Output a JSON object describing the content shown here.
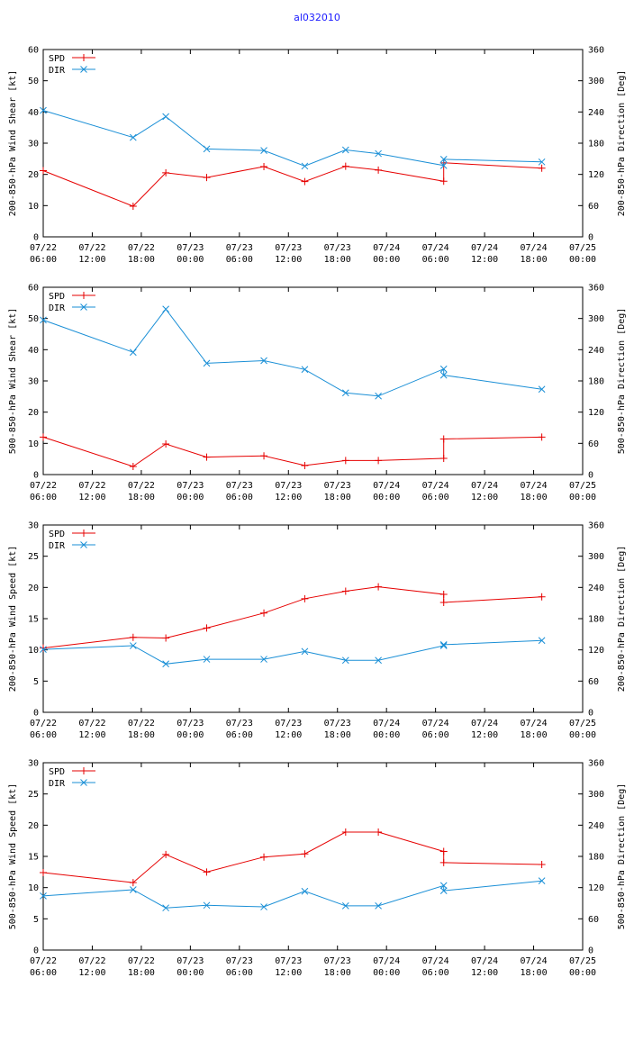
{
  "title": "al032010",
  "colors": {
    "title": "#1a1aff",
    "spd": "#e60000",
    "dir": "#1a8fd6",
    "axis": "#000000",
    "bg": "#ffffff"
  },
  "legend": {
    "spd": "SPD",
    "dir": "DIR"
  },
  "chart_data": [
    {
      "type": "line",
      "ylabel": "200-850-hPa Wind Shear [kt]",
      "y2label": "200-850-hPa Direction [Deg]",
      "ylim": [
        0,
        60
      ],
      "yticks": [
        0,
        10,
        20,
        30,
        40,
        50,
        60
      ],
      "y2lim": [
        0,
        360
      ],
      "y2ticks": [
        0,
        60,
        120,
        180,
        240,
        300,
        360
      ],
      "xlim": [
        0,
        66
      ],
      "xticks": [
        0,
        6,
        12,
        18,
        24,
        30,
        36,
        42,
        48,
        54,
        60,
        66
      ],
      "xticklabels": [
        [
          "07/22",
          "06:00"
        ],
        [
          "07/22",
          "12:00"
        ],
        [
          "07/22",
          "18:00"
        ],
        [
          "07/23",
          "00:00"
        ],
        [
          "07/23",
          "06:00"
        ],
        [
          "07/23",
          "12:00"
        ],
        [
          "07/23",
          "18:00"
        ],
        [
          "07/24",
          "00:00"
        ],
        [
          "07/24",
          "06:00"
        ],
        [
          "07/24",
          "12:00"
        ],
        [
          "07/24",
          "18:00"
        ],
        [
          "07/25",
          "00:00"
        ]
      ],
      "x_hours": [
        0,
        11,
        15,
        20,
        27,
        32,
        37,
        41,
        49,
        49,
        61
      ],
      "series": [
        {
          "name": "SPD",
          "axis": "y",
          "values": [
            21.2,
            9.8,
            20.5,
            19.0,
            22.5,
            17.7,
            22.6,
            21.4,
            17.8,
            23.7,
            22.0
          ]
        },
        {
          "name": "DIR",
          "axis": "y2",
          "values": [
            243,
            191,
            231,
            169,
            166,
            136,
            167,
            160,
            137,
            149,
            144
          ]
        }
      ]
    },
    {
      "type": "line",
      "ylabel": "500-850-hPa Wind Shear [kt]",
      "y2label": "500-850-hPa Direction [Deg]",
      "ylim": [
        0,
        60
      ],
      "yticks": [
        0,
        10,
        20,
        30,
        40,
        50,
        60
      ],
      "y2lim": [
        0,
        360
      ],
      "y2ticks": [
        0,
        60,
        120,
        180,
        240,
        300,
        360
      ],
      "xlim": [
        0,
        66
      ],
      "xticks": [
        0,
        6,
        12,
        18,
        24,
        30,
        36,
        42,
        48,
        54,
        60,
        66
      ],
      "xticklabels": [
        [
          "07/22",
          "06:00"
        ],
        [
          "07/22",
          "12:00"
        ],
        [
          "07/22",
          "18:00"
        ],
        [
          "07/23",
          "00:00"
        ],
        [
          "07/23",
          "06:00"
        ],
        [
          "07/23",
          "12:00"
        ],
        [
          "07/23",
          "18:00"
        ],
        [
          "07/24",
          "00:00"
        ],
        [
          "07/24",
          "06:00"
        ],
        [
          "07/24",
          "12:00"
        ],
        [
          "07/24",
          "18:00"
        ],
        [
          "07/25",
          "00:00"
        ]
      ],
      "x_hours": [
        0,
        11,
        15,
        20,
        27,
        32,
        37,
        41,
        49,
        49,
        61
      ],
      "series": [
        {
          "name": "SPD",
          "axis": "y",
          "values": [
            12.0,
            2.6,
            9.8,
            5.6,
            6.0,
            2.9,
            4.5,
            4.5,
            5.2,
            11.4,
            12.0
          ]
        },
        {
          "name": "DIR",
          "axis": "y2",
          "values": [
            297,
            235,
            318,
            214,
            219,
            202,
            157,
            151,
            203,
            191,
            164
          ]
        }
      ]
    },
    {
      "type": "line",
      "ylabel": "200-850-hPa Wind Speed [kt]",
      "y2label": "200-850-hPa Direction [Deg]",
      "ylim": [
        0,
        30
      ],
      "yticks": [
        0,
        5,
        10,
        15,
        20,
        25,
        30
      ],
      "y2lim": [
        0,
        360
      ],
      "y2ticks": [
        0,
        60,
        120,
        180,
        240,
        300,
        360
      ],
      "xlim": [
        0,
        66
      ],
      "xticks": [
        0,
        6,
        12,
        18,
        24,
        30,
        36,
        42,
        48,
        54,
        60,
        66
      ],
      "xticklabels": [
        [
          "07/22",
          "06:00"
        ],
        [
          "07/22",
          "12:00"
        ],
        [
          "07/22",
          "18:00"
        ],
        [
          "07/23",
          "00:00"
        ],
        [
          "07/23",
          "06:00"
        ],
        [
          "07/23",
          "12:00"
        ],
        [
          "07/23",
          "18:00"
        ],
        [
          "07/24",
          "00:00"
        ],
        [
          "07/24",
          "06:00"
        ],
        [
          "07/24",
          "12:00"
        ],
        [
          "07/24",
          "18:00"
        ],
        [
          "07/25",
          "00:00"
        ]
      ],
      "x_hours": [
        0,
        11,
        15,
        20,
        27,
        32,
        37,
        41,
        49,
        49,
        61
      ],
      "series": [
        {
          "name": "SPD",
          "axis": "y",
          "values": [
            10.3,
            12.0,
            11.9,
            13.5,
            15.9,
            18.2,
            19.4,
            20.1,
            18.9,
            17.6,
            18.5
          ]
        },
        {
          "name": "DIR",
          "axis": "y2",
          "values": [
            121,
            128,
            93,
            102,
            102,
            117,
            100,
            100,
            128,
            130,
            138
          ]
        }
      ]
    },
    {
      "type": "line",
      "ylabel": "500-850-hPa Wind Speed [kt]",
      "y2label": "500-850-hPa Direction [Deg]",
      "ylim": [
        0,
        30
      ],
      "yticks": [
        0,
        5,
        10,
        15,
        20,
        25,
        30
      ],
      "y2lim": [
        0,
        360
      ],
      "y2ticks": [
        0,
        60,
        120,
        180,
        240,
        300,
        360
      ],
      "xlim": [
        0,
        66
      ],
      "xticks": [
        0,
        6,
        12,
        18,
        24,
        30,
        36,
        42,
        48,
        54,
        60,
        66
      ],
      "xticklabels": [
        [
          "07/22",
          "06:00"
        ],
        [
          "07/22",
          "12:00"
        ],
        [
          "07/22",
          "18:00"
        ],
        [
          "07/23",
          "00:00"
        ],
        [
          "07/23",
          "06:00"
        ],
        [
          "07/23",
          "12:00"
        ],
        [
          "07/23",
          "18:00"
        ],
        [
          "07/24",
          "00:00"
        ],
        [
          "07/24",
          "06:00"
        ],
        [
          "07/24",
          "12:00"
        ],
        [
          "07/24",
          "18:00"
        ],
        [
          "07/25",
          "00:00"
        ]
      ],
      "x_hours": [
        0,
        11,
        15,
        20,
        27,
        32,
        37,
        41,
        49,
        49,
        61
      ],
      "series": [
        {
          "name": "SPD",
          "axis": "y",
          "values": [
            12.4,
            10.8,
            15.3,
            12.5,
            14.9,
            15.4,
            18.9,
            18.9,
            15.8,
            14.0,
            13.7
          ]
        },
        {
          "name": "DIR",
          "axis": "y2",
          "values": [
            104,
            116,
            81,
            86,
            83,
            113,
            85,
            85,
            124,
            114,
            133
          ]
        }
      ]
    }
  ]
}
